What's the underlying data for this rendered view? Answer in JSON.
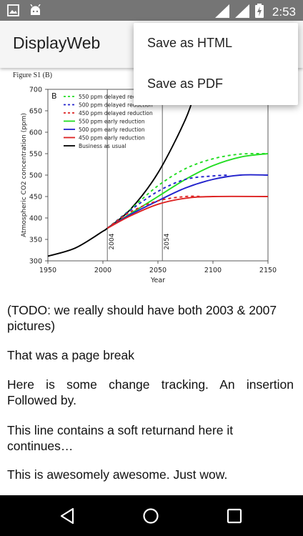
{
  "status_bar": {
    "time": "2:53"
  },
  "app_bar": {
    "title": "DisplayWeb"
  },
  "overflow_menu": {
    "items": [
      "Save as HTML",
      "Save as PDF"
    ]
  },
  "figure": {
    "caption": "Figure S1 (B)",
    "panel_label": "B",
    "ylabel": "Atmospheric CO2 concentration (ppm)",
    "xlabel": "Year",
    "x_ticks": [
      "1950",
      "2000",
      "2050",
      "2100",
      "2150"
    ],
    "y_ticks": [
      "300",
      "350",
      "400",
      "450",
      "500",
      "550",
      "600",
      "650",
      "700"
    ],
    "vline_labels": [
      "2004",
      "2054"
    ],
    "legend": [
      {
        "label": "550 ppm delayed reduction",
        "color": "#22dd22",
        "dashed": true
      },
      {
        "label": "500 ppm delayed reduction",
        "color": "#2222cc",
        "dashed": true
      },
      {
        "label": "450 ppm delayed reduction",
        "color": "#dd2222",
        "dashed": true
      },
      {
        "label": "550 ppm early reduction",
        "color": "#22dd22",
        "dashed": false
      },
      {
        "label": "500 ppm early reduction",
        "color": "#2222cc",
        "dashed": false
      },
      {
        "label": "450 ppm early reduction",
        "color": "#dd2222",
        "dashed": false
      },
      {
        "label": "Business as usual",
        "color": "#000000",
        "dashed": false
      }
    ]
  },
  "chart_data": {
    "type": "line",
    "xlabel": "Year",
    "ylabel": "Atmospheric CO2 concentration (ppm)",
    "xlim": [
      1950,
      2150
    ],
    "ylim": [
      300,
      700
    ],
    "vlines": [
      2004,
      2054
    ],
    "series": [
      {
        "name": "Business as usual",
        "color": "#000000",
        "dashed": false,
        "x": [
          1950,
          1975,
          2000,
          2004,
          2025,
          2050,
          2075,
          2085
        ],
        "y": [
          311,
          330,
          369,
          376,
          420,
          505,
          630,
          705
        ]
      },
      {
        "name": "550 ppm delayed reduction",
        "color": "#22dd22",
        "dashed": true,
        "x": [
          2004,
          2025,
          2050,
          2075,
          2100,
          2125,
          2150
        ],
        "y": [
          376,
          420,
          475,
          515,
          538,
          549,
          550
        ]
      },
      {
        "name": "500 ppm delayed reduction",
        "color": "#2222cc",
        "dashed": true,
        "x": [
          2004,
          2025,
          2050,
          2075,
          2100,
          2115
        ],
        "y": [
          376,
          418,
          462,
          490,
          498,
          500
        ]
      },
      {
        "name": "450 ppm delayed reduction",
        "color": "#dd2222",
        "dashed": true,
        "x": [
          2004,
          2025,
          2050,
          2075,
          2090
        ],
        "y": [
          376,
          414,
          440,
          450,
          450
        ]
      },
      {
        "name": "550 ppm early reduction",
        "color": "#22dd22",
        "dashed": false,
        "x": [
          2004,
          2025,
          2050,
          2075,
          2100,
          2125,
          2150
        ],
        "y": [
          376,
          410,
          450,
          490,
          522,
          542,
          550
        ]
      },
      {
        "name": "500 ppm early reduction",
        "color": "#2222cc",
        "dashed": false,
        "x": [
          2004,
          2025,
          2050,
          2075,
          2100,
          2125,
          2150
        ],
        "y": [
          376,
          408,
          440,
          470,
          490,
          500,
          500
        ]
      },
      {
        "name": "450 ppm early reduction",
        "color": "#dd2222",
        "dashed": false,
        "x": [
          2004,
          2025,
          2050,
          2075,
          2100,
          2150
        ],
        "y": [
          376,
          405,
          432,
          446,
          450,
          450
        ]
      }
    ]
  },
  "paragraphs": [
    "(TODO: we really should have both 2003 & 2007 pictures)",
    "That was a page break",
    "Here is some change tracking. An insertion Followed by.",
    "This line contains a soft returnand here it continues…",
    "This is awesomely awesome. Just wow."
  ]
}
